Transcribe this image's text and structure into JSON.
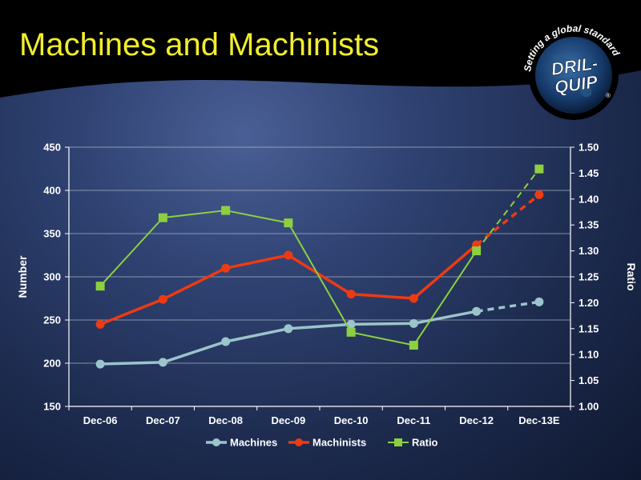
{
  "header": {
    "title": "Machines and Machinists",
    "logo": {
      "tagline": "Setting a global standard",
      "brand_top": "DRIL-",
      "brand_bottom": "QUIP",
      "mark": "®"
    }
  },
  "colors": {
    "title": "#f2ee2a",
    "machines": "#9cc4cb",
    "machinists": "#ee3a12",
    "ratio": "#8cd040",
    "grid": "#c8ccd8",
    "axis": "#ffffff"
  },
  "chart_data": {
    "type": "line",
    "categories": [
      "Dec-06",
      "Dec-07",
      "Dec-08",
      "Dec-09",
      "Dec-10",
      "Dec-11",
      "Dec-12",
      "Dec-13E"
    ],
    "y_left": {
      "label": "Number",
      "range": [
        150,
        450
      ],
      "ticks": [
        "150",
        "200",
        "250",
        "300",
        "350",
        "400",
        "450"
      ]
    },
    "y_right": {
      "label": "Ratio",
      "range": [
        1.0,
        1.5
      ],
      "ticks": [
        "1.00",
        "1.05",
        "1.10",
        "1.15",
        "1.20",
        "1.25",
        "1.30",
        "1.35",
        "1.40",
        "1.45",
        "1.50"
      ]
    },
    "grid": true,
    "legend_position": "bottom",
    "series": [
      {
        "name": "Machines",
        "axis": "left",
        "values": [
          199,
          201,
          225,
          240,
          245,
          246,
          260,
          271
        ],
        "estimate_from_index": 6
      },
      {
        "name": "Machinists",
        "axis": "left",
        "values": [
          245,
          274,
          310,
          325,
          280,
          275,
          337,
          395
        ],
        "estimate_from_index": 6
      },
      {
        "name": "Ratio",
        "axis": "right",
        "values": [
          1.232,
          1.364,
          1.378,
          1.354,
          1.143,
          1.118,
          1.3,
          1.458
        ],
        "estimate_from_index": 6
      }
    ]
  }
}
